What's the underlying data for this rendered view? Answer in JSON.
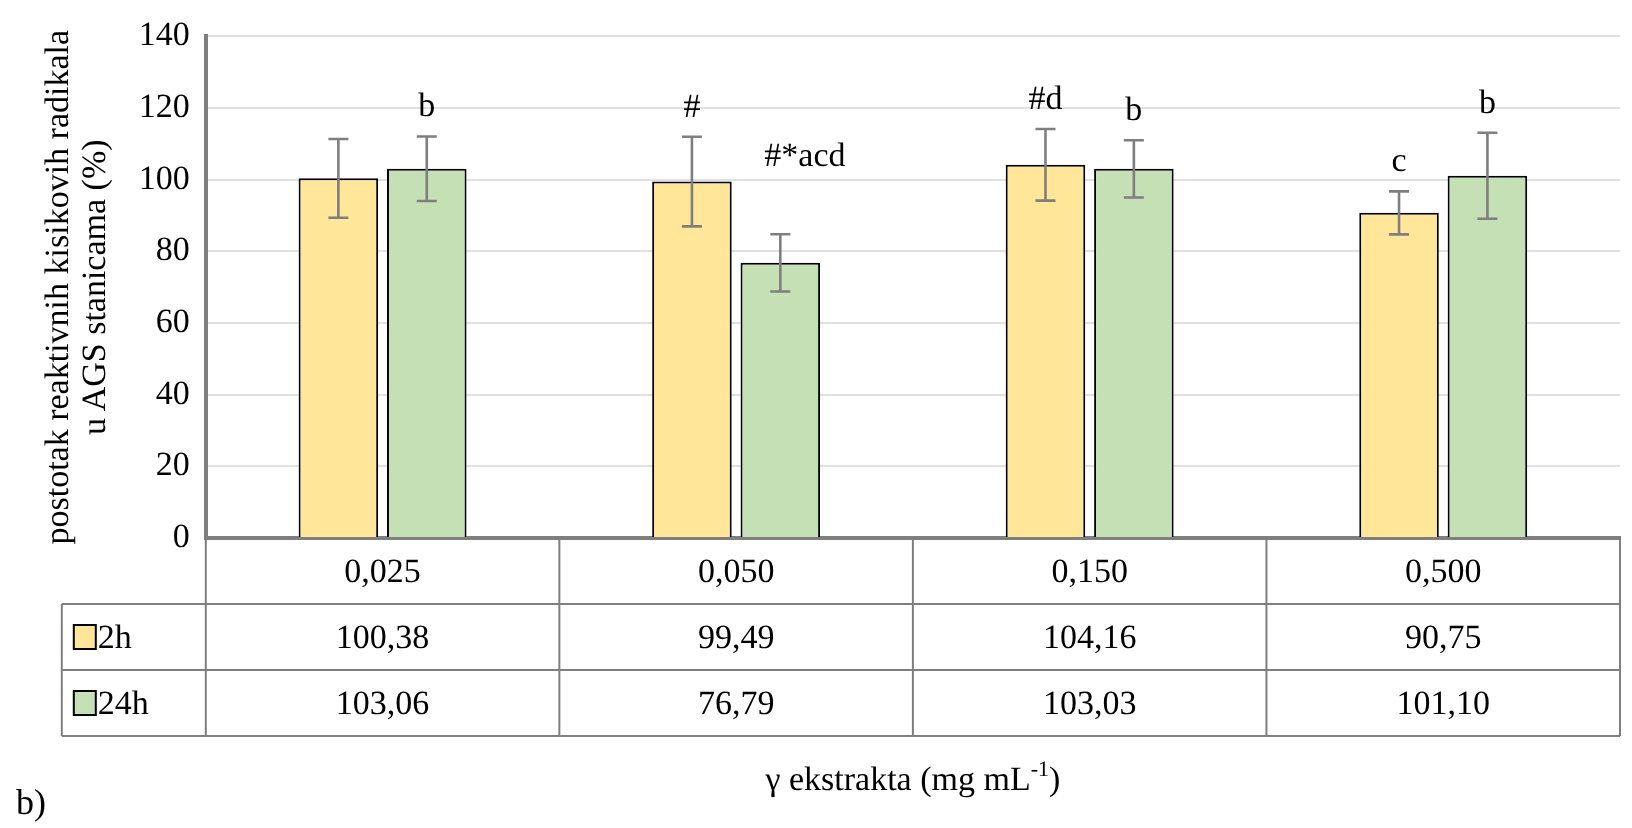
{
  "chart_data": {
    "type": "bar",
    "ylabel": "postotak reaktivnih kisikovih radikala u AGS stanicama (%)",
    "xlabel": "γ ekstrakta (mg mL$^{-1}$)",
    "categories": [
      "0,025",
      "0,050",
      "0,150",
      "0,500"
    ],
    "series": [
      {
        "name": "2h",
        "color": "#ffe699",
        "values": [
          100.38,
          99.49,
          104.16,
          90.75
        ],
        "errors": [
          11,
          12.5,
          10,
          6
        ],
        "value_labels": [
          "100,38",
          "99,49",
          "104,16",
          "90,75"
        ]
      },
      {
        "name": "24h",
        "color": "#c5e0b4",
        "values": [
          103.06,
          76.79,
          103.03,
          101.1
        ],
        "errors": [
          9,
          8,
          8,
          12
        ],
        "value_labels": [
          "103,06",
          "76,79",
          "103,03",
          "101,10"
        ]
      }
    ],
    "ylim": [
      0,
      140
    ],
    "yticks": [
      0,
      20,
      40,
      60,
      80,
      100,
      120,
      140
    ],
    "grid": "y",
    "legend": "bottom",
    "data_labels": true,
    "annotations": [
      {
        "text": "b",
        "x": "0,025",
        "y": 103.06
      },
      {
        "text": "#",
        "x": "0,050",
        "y": 99.49
      },
      {
        "text": "#*acd",
        "x": "0,050",
        "y": 76.79
      },
      {
        "text": "#d",
        "x": "0,150",
        "y": 104.16
      },
      {
        "text": "b",
        "x": "0,150",
        "y": 103.03
      },
      {
        "text": "c",
        "x": "0,500",
        "y": 90.75
      },
      {
        "text": "b",
        "x": "0,500",
        "y": 101.1
      },
      "b)"
    ]
  }
}
